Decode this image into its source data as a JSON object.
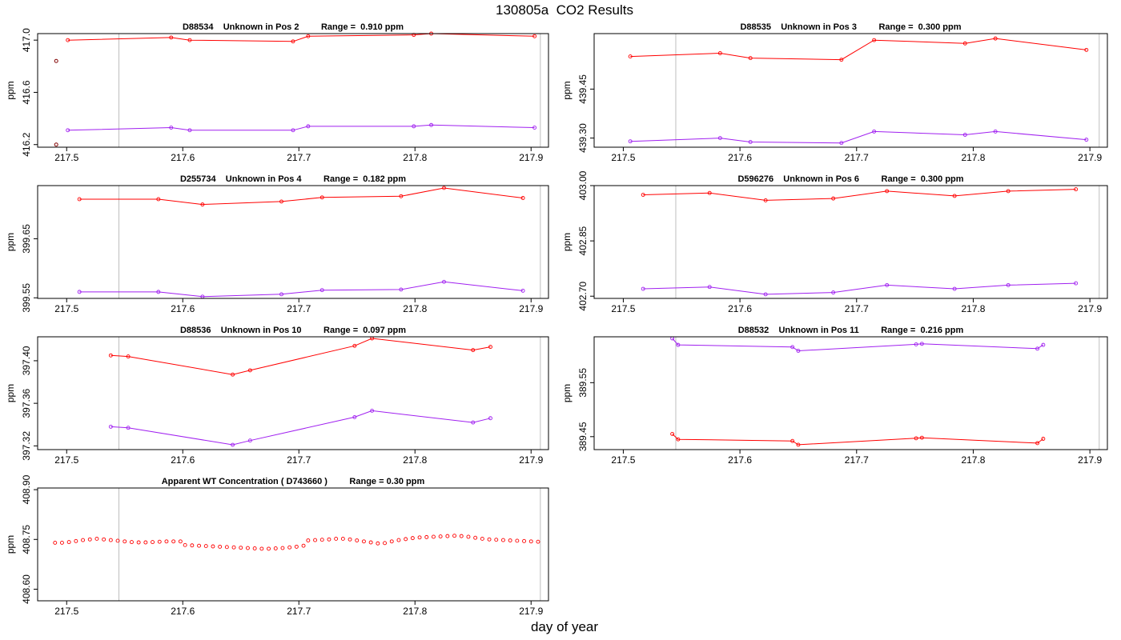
{
  "page": {
    "title": "130805a  CO2 Results",
    "xlabel": "day of year"
  },
  "colors": {
    "series_a": "#ff0000",
    "series_b": "#a020f0",
    "marker_dark": "#800000",
    "vline": "#bebebe",
    "axis": "#000000"
  },
  "chart_data": [
    {
      "type": "line",
      "title": "D88534    Unknown in Pos 2         Range =  0.910 ppm",
      "ylabel": "ppm",
      "xlim": [
        217.475,
        217.915
      ],
      "ylim": [
        416.18,
        417.05
      ],
      "xticks": [
        217.5,
        217.6,
        217.7,
        217.8,
        217.9
      ],
      "yticks": [
        416.2,
        416.6,
        417.0
      ],
      "ytick_labels": [
        "416.2",
        "416.6",
        "417.0"
      ],
      "vlines": [
        217.545,
        217.908
      ],
      "extra_points": [
        {
          "x": 217.491,
          "y": 416.84
        },
        {
          "x": 217.491,
          "y": 416.2
        }
      ],
      "series": [
        {
          "x": [
            217.501,
            217.59,
            217.606,
            217.695,
            217.708,
            217.799,
            217.814,
            217.903
          ],
          "y": [
            417.0,
            417.02,
            417.0,
            416.99,
            417.03,
            417.04,
            417.05,
            417.03
          ]
        },
        {
          "x": [
            217.501,
            217.59,
            217.606,
            217.695,
            217.708,
            217.799,
            217.814,
            217.903
          ],
          "y": [
            416.31,
            416.33,
            416.31,
            416.31,
            416.34,
            416.34,
            416.35,
            416.33
          ]
        }
      ]
    },
    {
      "type": "line",
      "title": "D88535    Unknown in Pos 3         Range =  0.300 ppm",
      "ylabel": "ppm",
      "xlim": [
        217.475,
        217.915
      ],
      "ylim": [
        439.272,
        439.62
      ],
      "xticks": [
        217.5,
        217.6,
        217.7,
        217.8,
        217.9
      ],
      "yticks": [
        439.3,
        439.45
      ],
      "ytick_labels": [
        "439.30",
        "439.45"
      ],
      "vlines": [
        217.545,
        217.908
      ],
      "series": [
        {
          "x": [
            217.506,
            217.583,
            217.609,
            217.687,
            217.715,
            217.793,
            217.819,
            217.897
          ],
          "y": [
            439.55,
            439.56,
            439.545,
            439.54,
            439.6,
            439.59,
            439.605,
            439.57
          ]
        },
        {
          "x": [
            217.506,
            217.583,
            217.609,
            217.687,
            217.715,
            217.793,
            217.819,
            217.897
          ],
          "y": [
            439.29,
            439.3,
            439.288,
            439.285,
            439.32,
            439.31,
            439.32,
            439.295
          ]
        }
      ]
    },
    {
      "type": "line",
      "title": "D255734    Unknown in Pos 4         Range =  0.182 ppm",
      "ylabel": "ppm",
      "xlim": [
        217.475,
        217.915
      ],
      "ylim": [
        399.549,
        399.74
      ],
      "xticks": [
        217.5,
        217.6,
        217.7,
        217.8,
        217.9
      ],
      "yticks": [
        399.55,
        399.65
      ],
      "ytick_labels": [
        "399.55",
        "399.65"
      ],
      "vlines": [
        217.545,
        217.908
      ],
      "series": [
        {
          "x": [
            217.511,
            217.579,
            217.617,
            217.685,
            217.72,
            217.788,
            217.825,
            217.893
          ],
          "y": [
            399.717,
            399.717,
            399.708,
            399.713,
            399.72,
            399.722,
            399.736,
            399.719
          ]
        },
        {
          "x": [
            217.511,
            217.579,
            217.617,
            217.685,
            217.72,
            217.788,
            217.825,
            217.893
          ],
          "y": [
            399.56,
            399.56,
            399.552,
            399.556,
            399.563,
            399.564,
            399.577,
            399.562
          ]
        }
      ]
    },
    {
      "type": "line",
      "title": "D596276    Unknown in Pos 6         Range =  0.300 ppm",
      "ylabel": "ppm",
      "xlim": [
        217.475,
        217.915
      ],
      "ylim": [
        402.694,
        403.0
      ],
      "xticks": [
        217.5,
        217.6,
        217.7,
        217.8,
        217.9
      ],
      "yticks": [
        402.7,
        402.85,
        403.0
      ],
      "ytick_labels": [
        "402.70",
        "402.85",
        "403.00"
      ],
      "vlines": [
        217.545,
        217.908
      ],
      "series": [
        {
          "x": [
            217.517,
            217.574,
            217.622,
            217.68,
            217.726,
            217.784,
            217.83,
            217.888
          ],
          "y": [
            402.975,
            402.98,
            402.96,
            402.965,
            402.985,
            402.972,
            402.985,
            402.99
          ]
        },
        {
          "x": [
            217.517,
            217.574,
            217.622,
            217.68,
            217.726,
            217.784,
            217.83,
            217.888
          ],
          "y": [
            402.72,
            402.725,
            402.705,
            402.71,
            402.73,
            402.72,
            402.73,
            402.735
          ]
        }
      ]
    },
    {
      "type": "line",
      "title": "D88536    Unknown in Pos 10         Range =  0.097 ppm",
      "ylabel": "ppm",
      "xlim": [
        217.475,
        217.915
      ],
      "ylim": [
        397.3165,
        397.4225
      ],
      "xticks": [
        217.5,
        217.6,
        217.7,
        217.8,
        217.9
      ],
      "yticks": [
        397.32,
        397.36,
        397.4
      ],
      "ytick_labels": [
        "397.32",
        "397.36",
        "397.40"
      ],
      "vlines": [
        217.545,
        217.908
      ],
      "series": [
        {
          "x": [
            217.538,
            217.553,
            217.643,
            217.658,
            217.748,
            217.763,
            217.85,
            217.865
          ],
          "y": [
            397.405,
            397.404,
            397.387,
            397.391,
            397.414,
            397.421,
            397.41,
            397.413
          ]
        },
        {
          "x": [
            217.538,
            217.553,
            217.643,
            217.658,
            217.748,
            217.763,
            217.85,
            217.865
          ],
          "y": [
            397.338,
            397.337,
            397.321,
            397.325,
            397.347,
            397.353,
            397.342,
            397.346
          ]
        }
      ]
    },
    {
      "type": "line",
      "title": "D88532    Unknown in Pos 11         Range =  0.216 ppm",
      "ylabel": "ppm",
      "xlim": [
        217.475,
        217.915
      ],
      "ylim": [
        389.426,
        389.635
      ],
      "xticks": [
        217.5,
        217.6,
        217.7,
        217.8,
        217.9
      ],
      "yticks": [
        389.45,
        389.55
      ],
      "ytick_labels": [
        "389.45",
        "389.55"
      ],
      "vlines": [
        217.545,
        217.908
      ],
      "series": [
        {
          "x": [
            217.542,
            217.547,
            217.645,
            217.65,
            217.751,
            217.756,
            217.855,
            217.86
          ],
          "y": [
            389.455,
            389.445,
            389.442,
            389.435,
            389.447,
            389.448,
            389.438,
            389.446
          ]
        },
        {
          "x": [
            217.542,
            217.547,
            217.645,
            217.65,
            217.751,
            217.756,
            217.855,
            217.86
          ],
          "y": [
            389.632,
            389.62,
            389.616,
            389.609,
            389.621,
            389.622,
            389.613,
            389.62
          ]
        }
      ]
    },
    {
      "type": "scatter",
      "title": "Apparent WT Concentration ( D743660 )         Range = 0.30 ppm",
      "ylabel": "ppm",
      "xlim": [
        217.475,
        217.915
      ],
      "ylim": [
        408.565,
        408.905
      ],
      "xticks": [
        217.5,
        217.6,
        217.7,
        217.8,
        217.9
      ],
      "yticks": [
        408.6,
        408.75,
        408.9
      ],
      "ytick_labels": [
        "408.60",
        "408.75",
        "408.90"
      ],
      "vlines": [
        217.545,
        217.908
      ],
      "series": [
        {
          "x": [
            217.49,
            217.496,
            217.502,
            217.508,
            217.514,
            217.52,
            217.526,
            217.532,
            217.538,
            217.544,
            217.55,
            217.556,
            217.562,
            217.568,
            217.574,
            217.58,
            217.586,
            217.592,
            217.598,
            217.602,
            217.608,
            217.614,
            217.62,
            217.626,
            217.632,
            217.638,
            217.644,
            217.65,
            217.656,
            217.662,
            217.668,
            217.674,
            217.68,
            217.686,
            217.692,
            217.698,
            217.704,
            217.708,
            217.714,
            217.72,
            217.726,
            217.732,
            217.738,
            217.744,
            217.75,
            217.756,
            217.762,
            217.768,
            217.774,
            217.78,
            217.786,
            217.792,
            217.798,
            217.804,
            217.81,
            217.816,
            217.822,
            217.828,
            217.834,
            217.84,
            217.846,
            217.852,
            217.858,
            217.864,
            217.87,
            217.876,
            217.882,
            217.888,
            217.894,
            217.9,
            217.906
          ],
          "y": [
            408.74,
            408.74,
            408.742,
            408.745,
            408.748,
            408.75,
            408.752,
            408.75,
            408.748,
            408.746,
            408.744,
            408.742,
            408.741,
            408.741,
            408.742,
            408.743,
            408.744,
            408.744,
            408.744,
            408.733,
            408.732,
            408.731,
            408.73,
            408.729,
            408.728,
            408.727,
            408.726,
            408.725,
            408.724,
            408.723,
            408.722,
            408.722,
            408.723,
            408.724,
            408.726,
            408.728,
            408.731,
            408.747,
            408.748,
            408.749,
            408.75,
            408.752,
            408.752,
            408.75,
            408.747,
            408.744,
            408.741,
            408.738,
            408.739,
            408.744,
            408.748,
            408.751,
            408.754,
            408.756,
            408.757,
            408.758,
            408.759,
            408.76,
            408.761,
            408.76,
            408.758,
            408.755,
            408.752,
            408.75,
            408.749,
            408.748,
            408.747,
            408.746,
            408.745,
            408.744,
            408.743
          ]
        }
      ]
    }
  ]
}
